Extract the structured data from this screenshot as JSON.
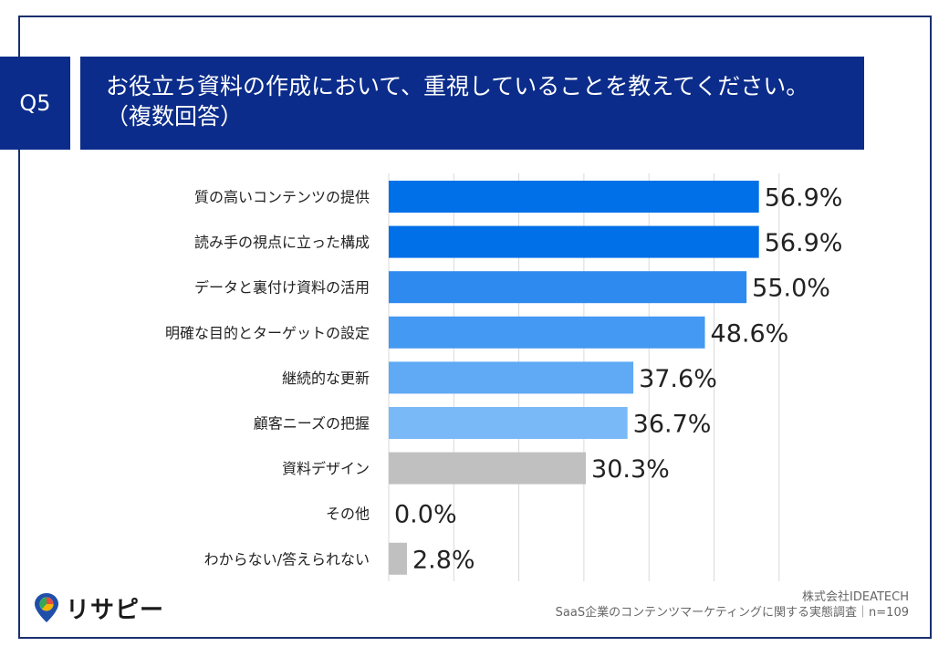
{
  "header": {
    "question_number": "Q5",
    "title_line1": "お役立ち資料の作成において、重視していることを教えてください。",
    "title_line2": "（複数回答）"
  },
  "chart_data": {
    "type": "bar",
    "orientation": "horizontal",
    "categories": [
      "質の高いコンテンツの提供",
      "読み手の視点に立った構成",
      "データと裏付け資料の活用",
      "明確な目的とターゲットの設定",
      "継続的な更新",
      "顧客ニーズの把握",
      "資料デザイン",
      "その他",
      "わからない/答えられない"
    ],
    "values": [
      56.9,
      56.9,
      55.0,
      48.6,
      37.6,
      36.7,
      30.3,
      0.0,
      2.8
    ],
    "value_labels": [
      "56.9%",
      "56.9%",
      "55.0%",
      "48.6%",
      "37.6%",
      "36.7%",
      "30.3%",
      "0.0%",
      "2.8%"
    ],
    "colors": [
      "#0070e8",
      "#0070e8",
      "#2f8af0",
      "#4499f2",
      "#5fa9f5",
      "#7ab9f8",
      "#c0c0c0",
      "#c0c0c0",
      "#c0c0c0"
    ],
    "xlim": [
      0,
      60
    ],
    "grid": true
  },
  "footer": {
    "company": "株式会社IDEATECH",
    "survey": "SaaS企業のコンテンツマーケティングに関する実態調査｜n=109",
    "logo_text": "リサピー"
  }
}
